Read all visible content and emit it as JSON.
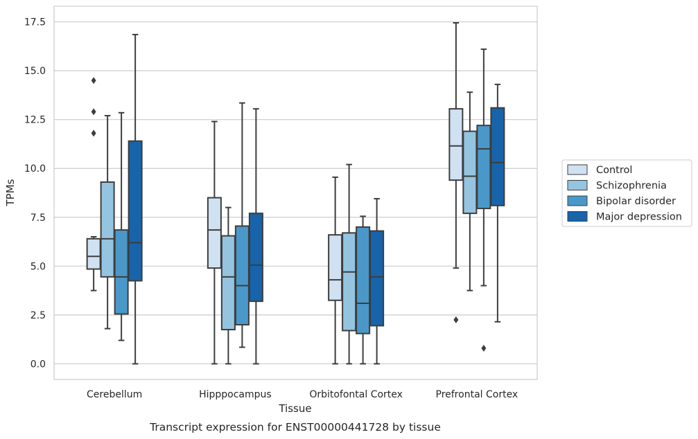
{
  "chart_data": {
    "type": "box",
    "caption": "Transcript expression for ENST00000441728 by tissue",
    "xlabel": "Tissue",
    "ylabel": "TPMs",
    "ylim": [
      -0.8,
      18.3
    ],
    "yticks": [
      0.0,
      2.5,
      5.0,
      7.5,
      10.0,
      12.5,
      15.0,
      17.5
    ],
    "ytick_labels": [
      "0.0",
      "2.5",
      "5.0",
      "7.5",
      "10.0",
      "12.5",
      "15.0",
      "17.5"
    ],
    "grid": "horizontal",
    "legend_position": "right",
    "categories": [
      "Cerebellum",
      "Hipppocampus",
      "Orbitofontal Cortex",
      "Prefrontal Cortex"
    ],
    "series": [
      {
        "name": "Control",
        "color": "#d0e1f2",
        "boxes": [
          {
            "whislo": 3.75,
            "q1": 4.85,
            "med": 5.5,
            "q3": 6.4,
            "whishi": 6.5,
            "fliers": [
              11.8,
              12.9,
              14.5
            ]
          },
          {
            "whislo": 0.0,
            "q1": 4.9,
            "med": 6.85,
            "q3": 8.5,
            "whishi": 12.4,
            "fliers": []
          },
          {
            "whislo": 0.0,
            "q1": 3.25,
            "med": 4.3,
            "q3": 6.6,
            "whishi": 9.55,
            "fliers": []
          },
          {
            "whislo": 4.9,
            "q1": 9.4,
            "med": 11.15,
            "q3": 13.05,
            "whishi": 17.45,
            "fliers": [
              2.25
            ]
          }
        ]
      },
      {
        "name": "Schizophrenia",
        "color": "#94c4df",
        "boxes": [
          {
            "whislo": 1.8,
            "q1": 4.45,
            "med": 6.4,
            "q3": 9.3,
            "whishi": 12.7,
            "fliers": []
          },
          {
            "whislo": 0.0,
            "q1": 1.75,
            "med": 4.45,
            "q3": 6.55,
            "whishi": 8.0,
            "fliers": []
          },
          {
            "whislo": 0.0,
            "q1": 1.7,
            "med": 4.7,
            "q3": 6.7,
            "whishi": 10.2,
            "fliers": []
          },
          {
            "whislo": 3.75,
            "q1": 7.7,
            "med": 9.6,
            "q3": 11.9,
            "whishi": 13.9,
            "fliers": []
          }
        ]
      },
      {
        "name": "Bipolar disorder",
        "color": "#4a98c9",
        "boxes": [
          {
            "whislo": 1.2,
            "q1": 2.55,
            "med": 4.45,
            "q3": 6.85,
            "whishi": 12.85,
            "fliers": []
          },
          {
            "whislo": 0.85,
            "q1": 2.0,
            "med": 4.0,
            "q3": 7.05,
            "whishi": 13.35,
            "fliers": []
          },
          {
            "whislo": 0.0,
            "q1": 1.55,
            "med": 3.1,
            "q3": 7.0,
            "whishi": 7.55,
            "fliers": []
          },
          {
            "whislo": 4.0,
            "q1": 7.95,
            "med": 11.0,
            "q3": 12.2,
            "whishi": 16.1,
            "fliers": [
              0.8
            ]
          }
        ]
      },
      {
        "name": "Major depression",
        "color": "#1764ab",
        "boxes": [
          {
            "whislo": 0.0,
            "q1": 4.25,
            "med": 6.2,
            "q3": 11.4,
            "whishi": 16.85,
            "fliers": []
          },
          {
            "whislo": 0.0,
            "q1": 3.2,
            "med": 5.05,
            "q3": 7.7,
            "whishi": 13.05,
            "fliers": []
          },
          {
            "whislo": 0.0,
            "q1": 1.95,
            "med": 4.45,
            "q3": 6.8,
            "whishi": 8.45,
            "fliers": []
          },
          {
            "whislo": 2.15,
            "q1": 8.1,
            "med": 10.3,
            "q3": 13.1,
            "whishi": 14.3,
            "fliers": []
          }
        ]
      }
    ]
  }
}
